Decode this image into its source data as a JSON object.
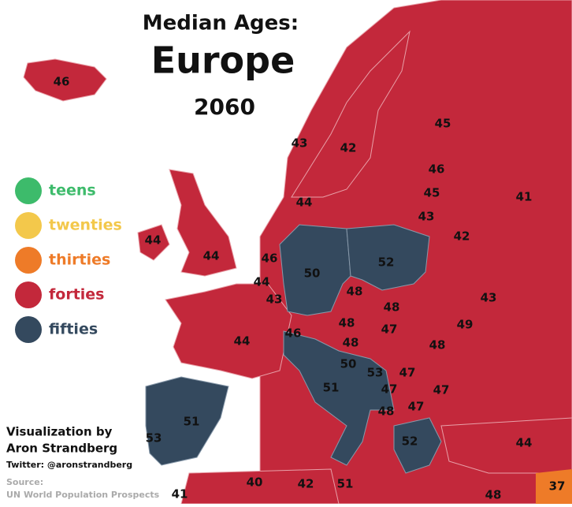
{
  "title": {
    "line1": "Median Ages:",
    "line2": "Europe",
    "line3": "2060"
  },
  "legend": [
    {
      "label": "teens",
      "color": "#3dbb6b"
    },
    {
      "label": "twenties",
      "color": "#f3c84b"
    },
    {
      "label": "thirties",
      "color": "#ee7b28"
    },
    {
      "label": "forties",
      "color": "#c3283b"
    },
    {
      "label": "fifties",
      "color": "#34495e"
    }
  ],
  "labels": [
    46,
    45,
    43,
    42,
    46,
    45,
    41,
    44,
    43,
    42,
    44,
    44,
    46,
    50,
    52,
    44,
    43,
    48,
    48,
    43,
    48,
    49,
    46,
    47,
    44,
    48,
    48,
    50,
    53,
    47,
    51,
    47,
    47,
    47,
    48,
    51,
    53,
    52,
    44,
    40,
    42,
    51,
    41,
    48,
    37
  ],
  "credits": {
    "line1": "Visualization by",
    "line2": "Aron Strandberg",
    "twitter": "Twitter: @aronstrandberg",
    "source_label": "Source:",
    "source": "UN World Population Prospects"
  }
}
